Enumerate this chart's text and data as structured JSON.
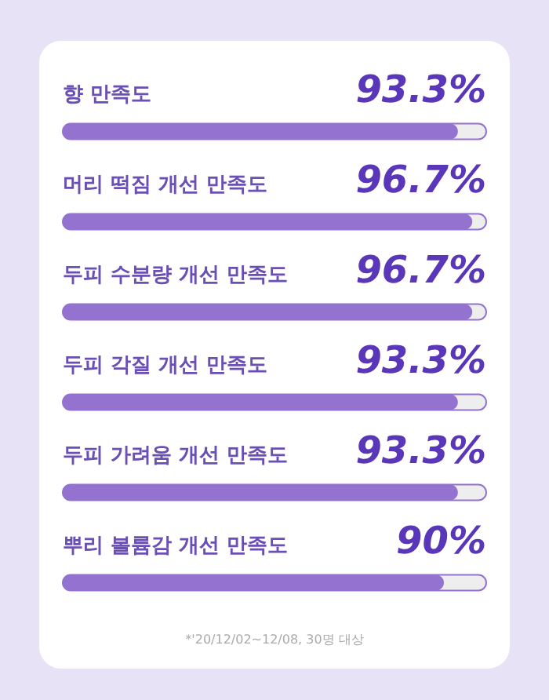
{
  "chart_data": {
    "type": "bar",
    "orientation": "horizontal",
    "categories": [
      "향 만족도",
      "머리 떡짐 개선 만족도",
      "두피 수분량 개선 만족도",
      "두피 각질 개선 만족도",
      "두피 가려움 개선 만족도",
      "뿌리 볼륨감 개선 만족도"
    ],
    "values": [
      93.3,
      96.7,
      96.7,
      93.3,
      93.3,
      90
    ],
    "value_labels": [
      "93.3%",
      "96.7%",
      "96.7%",
      "93.3%",
      "93.3%",
      "90%"
    ],
    "color": "#9473d0",
    "xlim": [
      0,
      100
    ],
    "tick_labels": false,
    "annotations": [
      "*'20/12/02~12/08, 30명 대상"
    ]
  }
}
